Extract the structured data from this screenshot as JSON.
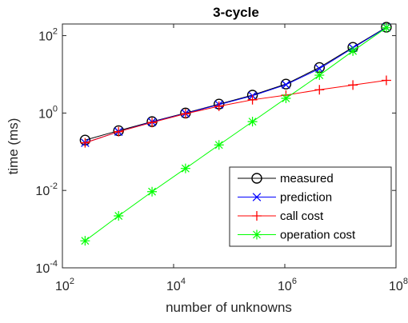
{
  "chart_data": {
    "type": "line",
    "title": "3-cycle",
    "xlabel": "number of unknowns",
    "ylabel": "time (ms)",
    "xscale": "log",
    "yscale": "log",
    "xlim": [
      100,
      100000000
    ],
    "ylim": [
      0.0001,
      200
    ],
    "grid": false,
    "legend_position": "bottom-right",
    "x": [
      256,
      1024,
      4096,
      16384,
      65536,
      262144,
      1048576,
      4194304,
      16777216,
      67108864
    ],
    "x_ticks": [
      {
        "base": "10",
        "exp": "2",
        "value": 100
      },
      {
        "base": "10",
        "exp": "4",
        "value": 10000
      },
      {
        "base": "10",
        "exp": "6",
        "value": 1000000
      },
      {
        "base": "10",
        "exp": "8",
        "value": 100000000
      }
    ],
    "y_ticks": [
      {
        "base": "10",
        "exp": "-4",
        "value": 0.0001
      },
      {
        "base": "10",
        "exp": "-2",
        "value": 0.01
      },
      {
        "base": "10",
        "exp": "0",
        "value": 1
      },
      {
        "base": "10",
        "exp": "2",
        "value": 100
      }
    ],
    "series": [
      {
        "name": "measured",
        "color": "#000000",
        "marker": "circle",
        "values": [
          0.2,
          0.35,
          0.6,
          1.0,
          1.7,
          2.9,
          5.6,
          15,
          50,
          165
        ]
      },
      {
        "name": "prediction",
        "color": "#0000ff",
        "marker": "x",
        "values": [
          0.17,
          0.33,
          0.59,
          0.98,
          1.65,
          2.8,
          5.4,
          14,
          48,
          162
        ]
      },
      {
        "name": "call cost",
        "color": "#ff0000",
        "marker": "plus",
        "values": [
          0.17,
          0.33,
          0.57,
          0.96,
          1.5,
          2.2,
          2.9,
          4.0,
          5.3,
          7.0
        ]
      },
      {
        "name": "operation cost",
        "color": "#00ff00",
        "marker": "asterisk",
        "values": [
          0.0005,
          0.0022,
          0.0093,
          0.037,
          0.15,
          0.6,
          2.4,
          9.5,
          40,
          160
        ]
      }
    ]
  }
}
